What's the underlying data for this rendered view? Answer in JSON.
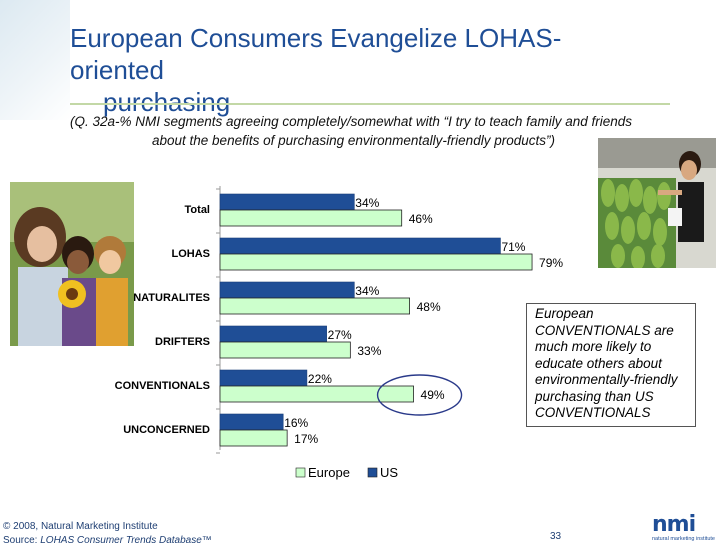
{
  "slide": {
    "title_line1": "European Consumers Evangelize LOHAS-oriented",
    "title_line2": "purchasing",
    "subtitle_line1": "(Q. 32a-% NMI segments agreeing completely/somewhat with “I try to teach family and friends",
    "subtitle_line2": "about the benefits of purchasing environmentally-friendly products”)"
  },
  "chart_data": {
    "type": "bar",
    "orientation": "horizontal",
    "categories": [
      "Total",
      "LOHAS",
      "NATURALITES",
      "DRIFTERS",
      "CONVENTIONALS",
      "UNCONCERNED"
    ],
    "series": [
      {
        "name": "US",
        "color": "#1f4e96",
        "values": [
          34,
          71,
          34,
          27,
          22,
          16
        ]
      },
      {
        "name": "Europe",
        "color": "#ccffcc",
        "values": [
          46,
          79,
          48,
          33,
          49,
          17
        ]
      }
    ],
    "value_suffix": "%",
    "xlim": [
      0,
      100
    ],
    "legend": [
      "Europe",
      "US"
    ],
    "legend_position": "bottom-center",
    "highlight": "CONVENTIONALS Europe value circled"
  },
  "callout": {
    "text": "European CONVENTIONALS are much more likely to educate others about environmentally-friendly purchasing than US CONVENTIONALS"
  },
  "footer": {
    "copyright": "© 2008, Natural Marketing Institute",
    "source_prefix": "Source: ",
    "source_name": "LOHAS Consumer Trends Database™",
    "page_number": "33"
  },
  "logo": {
    "word": "nmi",
    "tagline": "natural marketing institute",
    "color": "#1f4e96"
  },
  "photos": {
    "left_icon": "family-with-sunflower-photo",
    "right_icon": "woman-at-vegetable-market-photo"
  }
}
